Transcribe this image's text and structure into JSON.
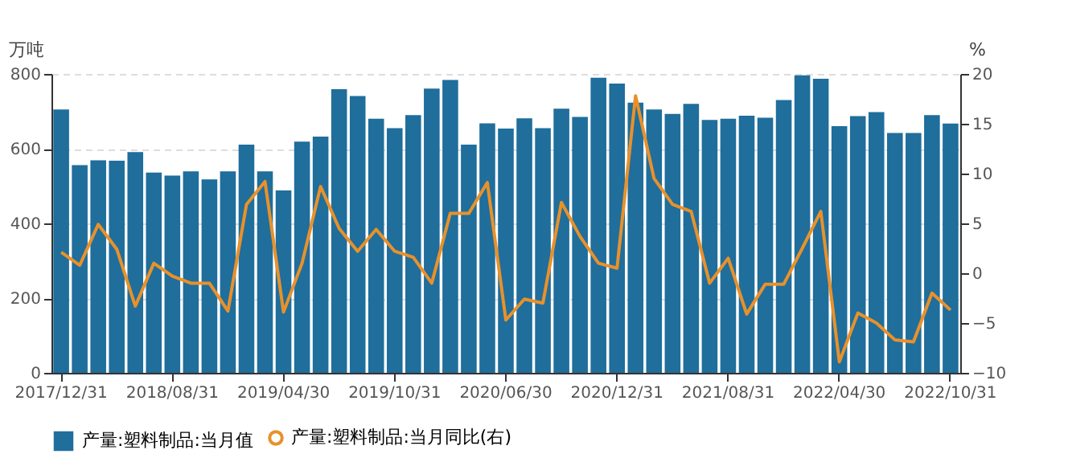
{
  "chart_data": {
    "type": "bar",
    "ylabel": "万吨",
    "y2label": "%",
    "categories": [
      "2017/12/31",
      null,
      null,
      null,
      null,
      null,
      "2018/08/31",
      null,
      null,
      null,
      null,
      null,
      "2019/04/30",
      null,
      null,
      null,
      null,
      null,
      "2019/10/31",
      null,
      null,
      null,
      null,
      null,
      "2020/06/30",
      null,
      null,
      null,
      null,
      null,
      "2020/12/31",
      null,
      null,
      null,
      null,
      null,
      "2021/08/31",
      null,
      null,
      null,
      null,
      null,
      "2022/04/30",
      null,
      null,
      null,
      null,
      null,
      "2022/10/31"
    ],
    "series": [
      {
        "name": "产量:塑料制品:当月值",
        "color": "#1f6e9c",
        "values": [
          705,
          556,
          569,
          568,
          591,
          536,
          528,
          539,
          518,
          539,
          611,
          539,
          488,
          619,
          632,
          759,
          741,
          680,
          655,
          690,
          761,
          784,
          611,
          668,
          654,
          681,
          655,
          707,
          685,
          790,
          774,
          723,
          705,
          693,
          720,
          677,
          680,
          688,
          683,
          730,
          796,
          787,
          660,
          687,
          698,
          642,
          642,
          690,
          667
        ]
      },
      {
        "name": "产量:塑料制品:当月同比(右)",
        "type": "line",
        "axis": "y2",
        "color": "#e8912b",
        "marker": "none",
        "values": [
          2.1,
          0.8,
          4.9,
          2.4,
          -3.3,
          1.0,
          -0.3,
          -1.0,
          -1.0,
          -3.8,
          6.9,
          9.2,
          -3.9,
          1.0,
          8.7,
          4.5,
          2.2,
          4.4,
          2.2,
          1.6,
          -1.0,
          6.0,
          6.0,
          9.1,
          -4.7,
          -2.6,
          -3.0,
          7.1,
          3.7,
          1.0,
          0.5,
          17.8,
          9.5,
          6.9,
          6.2,
          -1.0,
          1.5,
          -4.1,
          -1.1,
          -1.1,
          2.5,
          6.2,
          -8.9,
          -4.0,
          -5.0,
          -6.7,
          -6.9,
          -2.0,
          -3.7
        ]
      }
    ],
    "ylim": [
      0,
      800
    ],
    "yticks": [
      0,
      200,
      400,
      600,
      800
    ],
    "y2lim": [
      -10,
      20
    ],
    "y2ticks": [
      -10,
      -5,
      0,
      5,
      10,
      15,
      20
    ],
    "grid": "y",
    "legend": "bottom"
  }
}
